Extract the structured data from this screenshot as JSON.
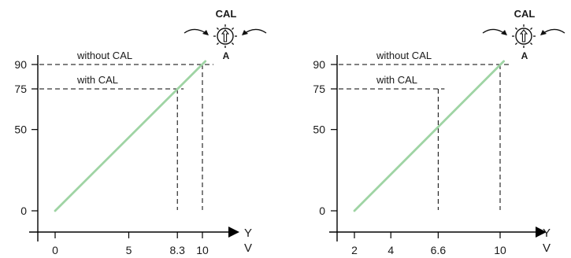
{
  "colors": {
    "line": "#9fd4a4",
    "axis": "#000000",
    "dash": "#000000"
  },
  "icons": {
    "knob": "cal-knob-icon",
    "arrows": "curved-arrow-icon"
  },
  "chart_data": [
    {
      "type": "line",
      "x_axis_label": "V",
      "y_axis_arrow_label": "Y",
      "xlim": [
        0,
        11.7
      ],
      "ylim": [
        -6.5,
        97
      ],
      "x_ticks": [
        0,
        5,
        8.3,
        10
      ],
      "x_tick_labels": [
        "0",
        "5",
        "8.3",
        "10"
      ],
      "y_ticks": [
        0,
        50,
        75,
        90
      ],
      "y_tick_labels": [
        "0",
        "50",
        "75",
        "90"
      ],
      "series": [
        {
          "x": [
            0,
            10.2
          ],
          "y": [
            0,
            92
          ]
        }
      ],
      "annotations": [
        {
          "text": "without CAL",
          "x": 10,
          "y": 90
        },
        {
          "text": "with CAL",
          "x": 8.3,
          "y": 75
        }
      ],
      "knob": {
        "title": "CAL",
        "letter": "A"
      }
    },
    {
      "type": "line",
      "x_axis_label": "V",
      "y_axis_arrow_label": "Y",
      "xlim": [
        1.7,
        11.7
      ],
      "ylim": [
        -6.5,
        97
      ],
      "x_ticks": [
        2,
        4,
        6.6,
        10
      ],
      "x_tick_labels": [
        "2",
        "4",
        "6.6",
        "10"
      ],
      "y_ticks": [
        0,
        50,
        75,
        90
      ],
      "y_tick_labels": [
        "0",
        "50",
        "75",
        "90"
      ],
      "series": [
        {
          "x": [
            2,
            10.2
          ],
          "y": [
            0,
            92
          ]
        }
      ],
      "annotations": [
        {
          "text": "without CAL",
          "x": 10,
          "y": 90
        },
        {
          "text": "with CAL",
          "x": 6.6,
          "y": 75
        }
      ],
      "knob": {
        "title": "CAL",
        "letter": "A"
      }
    }
  ]
}
